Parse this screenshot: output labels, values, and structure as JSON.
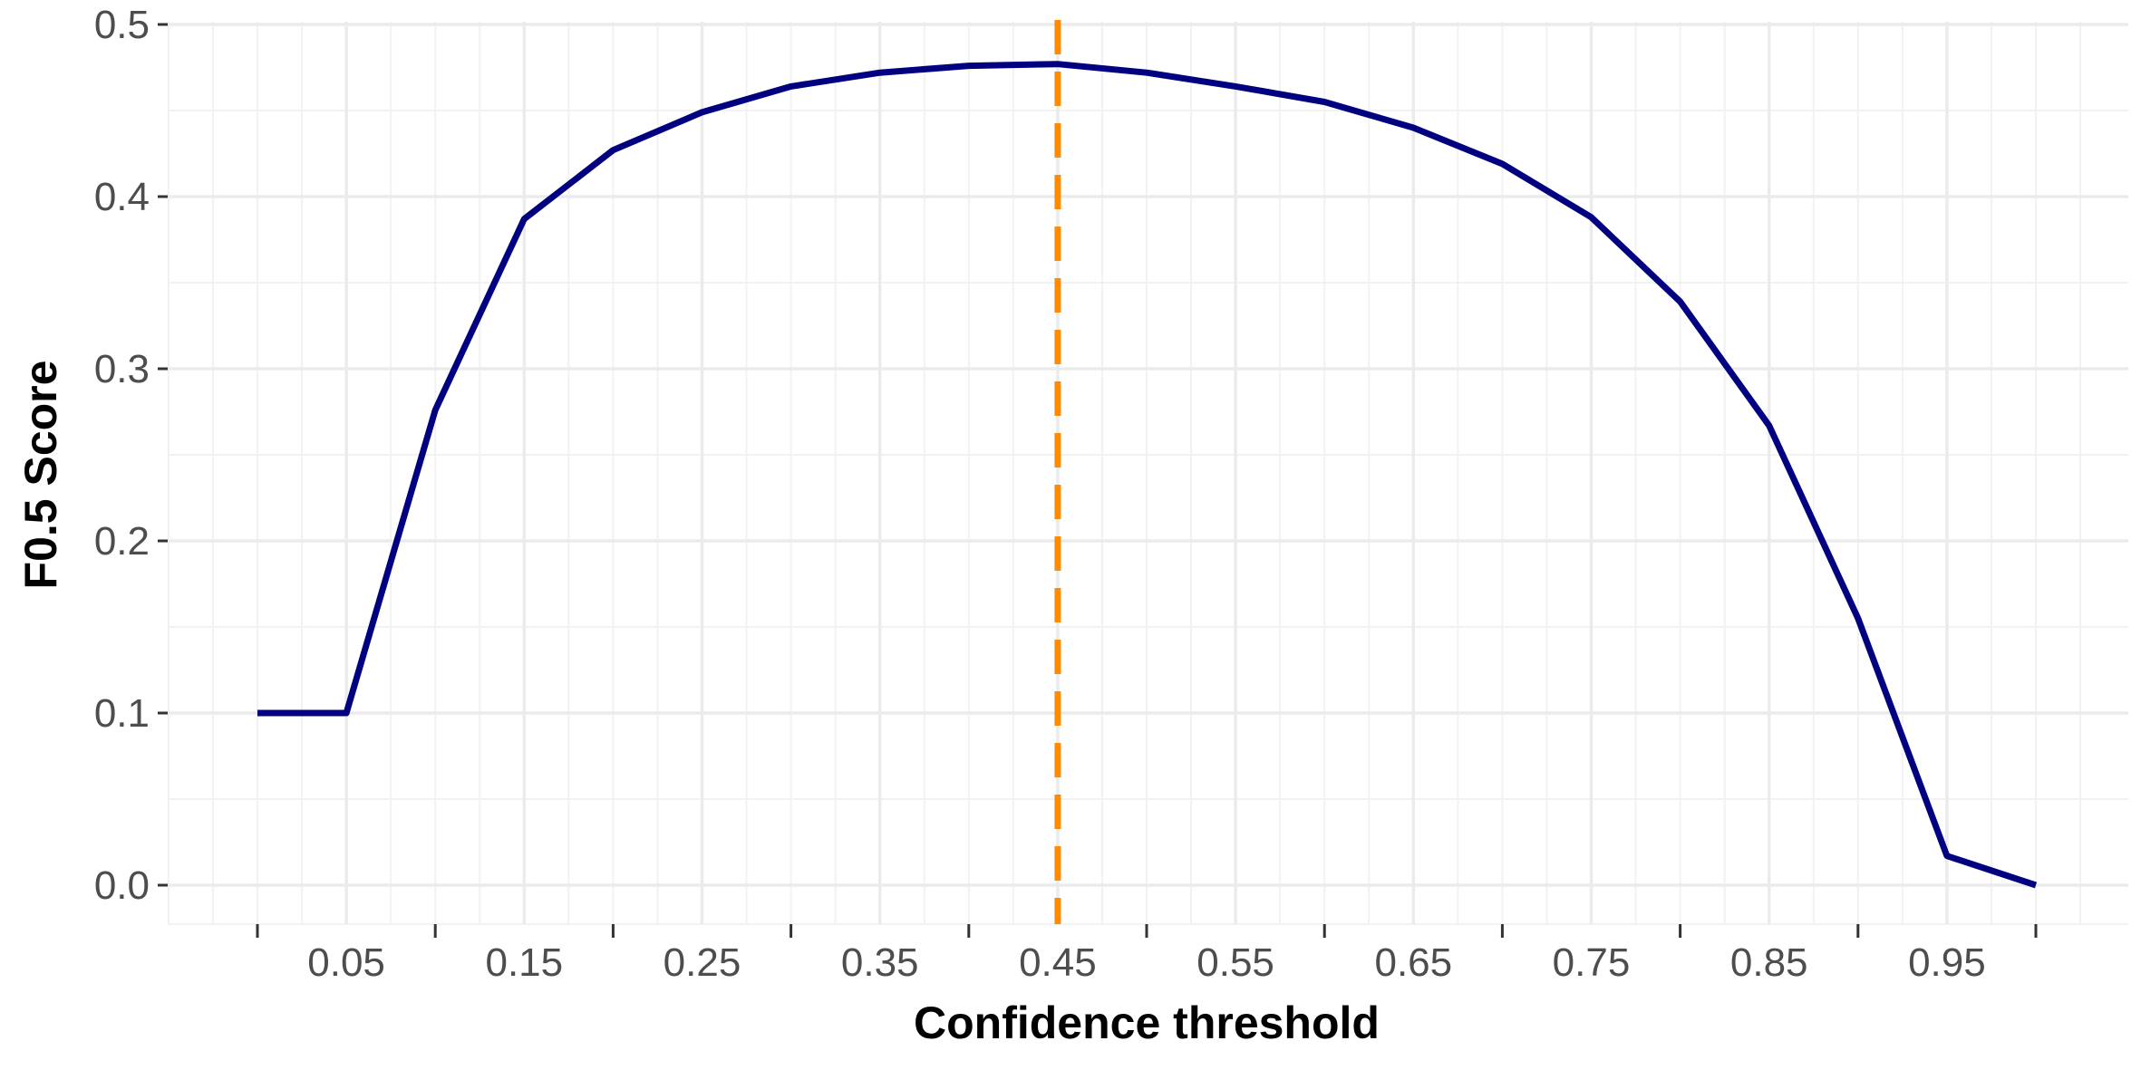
{
  "chart_data": {
    "type": "line",
    "title": "",
    "xlabel": "Confidence threshold",
    "ylabel": "F0.5  Score",
    "xlim": [
      -0.05,
      1.05
    ],
    "ylim": [
      -0.02,
      0.5
    ],
    "x_ticks": [
      0.05,
      0.15,
      0.25,
      0.35,
      0.45,
      0.55,
      0.65,
      0.75,
      0.85,
      0.95
    ],
    "x_tick_labels": [
      "0.05",
      "0.15",
      "0.25",
      "0.35",
      "0.45",
      "0.55",
      "0.65",
      "0.75",
      "0.85",
      "0.95"
    ],
    "x_minor_ticks": [
      0.0,
      0.1,
      0.2,
      0.3,
      0.4,
      0.5,
      0.6,
      0.7,
      0.8,
      0.9,
      1.0
    ],
    "y_ticks": [
      0.0,
      0.1,
      0.2,
      0.3,
      0.4,
      0.5
    ],
    "y_tick_labels": [
      "0.0",
      "0.1",
      "0.2",
      "0.3",
      "0.4",
      "0.5"
    ],
    "grid": true,
    "series": [
      {
        "color": "#000080",
        "x": [
          0.0,
          0.05,
          0.1,
          0.15,
          0.2,
          0.25,
          0.3,
          0.35,
          0.4,
          0.45,
          0.5,
          0.55,
          0.6,
          0.65,
          0.7,
          0.75,
          0.8,
          0.85,
          0.9,
          0.95,
          1.0
        ],
        "y": [
          0.1,
          0.1,
          0.276,
          0.387,
          0.427,
          0.449,
          0.464,
          0.472,
          0.476,
          0.477,
          0.472,
          0.464,
          0.455,
          0.44,
          0.419,
          0.388,
          0.339,
          0.267,
          0.155,
          0.017,
          0.0
        ]
      }
    ],
    "reference_line": {
      "orientation": "vertical",
      "x": 0.45,
      "style": "dashed",
      "color": "#ff8c00"
    }
  }
}
